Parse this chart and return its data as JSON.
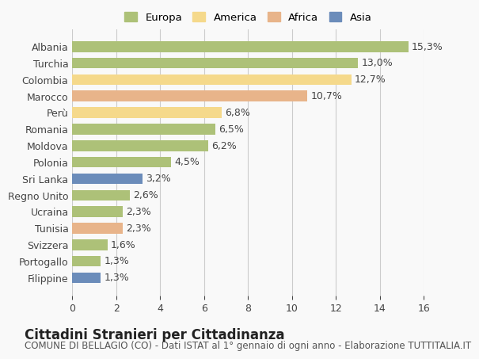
{
  "categories": [
    "Filippine",
    "Portogallo",
    "Svizzera",
    "Tunisia",
    "Ucraina",
    "Regno Unito",
    "Sri Lanka",
    "Polonia",
    "Moldova",
    "Romania",
    "Perù",
    "Marocco",
    "Colombia",
    "Turchia",
    "Albania"
  ],
  "values": [
    1.3,
    1.3,
    1.6,
    2.3,
    2.3,
    2.6,
    3.2,
    4.5,
    6.2,
    6.5,
    6.8,
    10.7,
    12.7,
    13.0,
    15.3
  ],
  "colors": [
    "#6b8cba",
    "#adc178",
    "#adc178",
    "#e8b48a",
    "#adc178",
    "#adc178",
    "#6b8cba",
    "#adc178",
    "#adc178",
    "#adc178",
    "#f5d98b",
    "#e8b48a",
    "#f5d98b",
    "#adc178",
    "#adc178"
  ],
  "labels": [
    "1,3%",
    "1,3%",
    "1,6%",
    "2,3%",
    "2,3%",
    "2,6%",
    "3,2%",
    "4,5%",
    "6,2%",
    "6,5%",
    "6,8%",
    "10,7%",
    "12,7%",
    "13,0%",
    "15,3%"
  ],
  "legend_labels": [
    "Europa",
    "America",
    "Africa",
    "Asia"
  ],
  "legend_colors": [
    "#adc178",
    "#f5d98b",
    "#e8b48a",
    "#6b8cba"
  ],
  "xlim": [
    0,
    16
  ],
  "xticks": [
    0,
    2,
    4,
    6,
    8,
    10,
    12,
    14,
    16
  ],
  "title": "Cittadini Stranieri per Cittadinanza",
  "subtitle": "COMUNE DI BELLAGIO (CO) - Dati ISTAT al 1° gennaio di ogni anno - Elaborazione TUTTITALIA.IT",
  "bg_color": "#f9f9f9",
  "grid_color": "#cccccc",
  "bar_height": 0.65,
  "label_fontsize": 9,
  "tick_fontsize": 9,
  "title_fontsize": 12,
  "subtitle_fontsize": 8.5
}
